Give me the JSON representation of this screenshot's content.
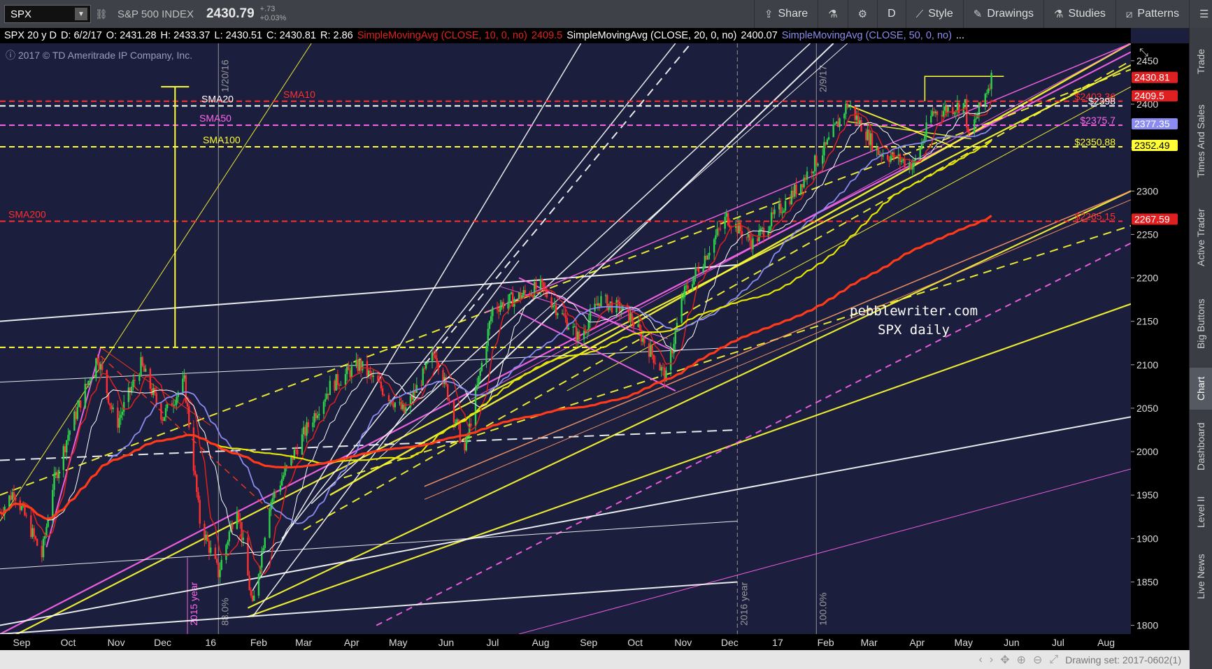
{
  "toolbar": {
    "symbol": "SPX",
    "index_name": "S&P 500 INDEX",
    "last": "2430.79",
    "change_abs": "+.73",
    "change_pct": "+0.03%",
    "share": "Share",
    "period": "D",
    "style": "Style",
    "drawings": "Drawings",
    "studies": "Studies",
    "patterns": "Patterns"
  },
  "infobar": {
    "chart_spec": "SPX 20 y D",
    "date": "D: 6/2/17",
    "open": "O: 2431.28",
    "high": "H: 2433.37",
    "low": "L: 2430.51",
    "close": "C: 2430.81",
    "range": "R: 2.86",
    "sma10_label": "SimpleMovingAvg (CLOSE, 10, 0, no)",
    "sma10_value": "2409.5",
    "sma20_label": "SimpleMovingAvg (CLOSE, 20, 0, no)",
    "sma20_value": "2400.07",
    "sma50_label": "SimpleMovingAvg (CLOSE, 50, 0, no)",
    "more": "..."
  },
  "sidebar": {
    "tabs": [
      "Trade",
      "Times And Sales",
      "Active Trader",
      "Big Buttons",
      "Chart",
      "Dashboard",
      "Level II",
      "Live News"
    ],
    "active": "Chart"
  },
  "status": {
    "drawing_set": "Drawing set: 2017-0602(1)"
  },
  "overlay_text": {
    "copyright": "2017 © TD Ameritrade IP Company, Inc.",
    "brand_line1": "pebblewriter.com",
    "brand_line2": "SPX daily"
  },
  "colors": {
    "background": "#1b1e3c",
    "sma10": "#e02020",
    "sma20": "#ffffff",
    "sma50": "#8a8cf0",
    "sma100": "#e6e600",
    "sma200": "#ff3a1a",
    "magenta": "#ff66ee",
    "yellow": "#ffff33"
  },
  "chart_data": {
    "type": "candlestick",
    "ylim": [
      1790,
      2470
    ],
    "xlim": [
      "2015-09-01",
      "2017-08-31"
    ],
    "y_ticks": [
      1800,
      1850,
      1900,
      1950,
      2000,
      2050,
      2100,
      2150,
      2200,
      2250,
      2300,
      2350,
      2400,
      2450
    ],
    "x_tick_labels": [
      {
        "label": "Sep",
        "date": "2015-09-15"
      },
      {
        "label": "Oct",
        "date": "2015-10-15"
      },
      {
        "label": "Nov",
        "date": "2015-11-15"
      },
      {
        "label": "Dec",
        "date": "2015-12-15"
      },
      {
        "label": "16",
        "date": "2016-01-15"
      },
      {
        "label": "Feb",
        "date": "2016-02-15"
      },
      {
        "label": "Mar",
        "date": "2016-03-15"
      },
      {
        "label": "Apr",
        "date": "2016-04-15"
      },
      {
        "label": "May",
        "date": "2016-05-15"
      },
      {
        "label": "Jun",
        "date": "2016-06-15"
      },
      {
        "label": "Jul",
        "date": "2016-07-15"
      },
      {
        "label": "Aug",
        "date": "2016-08-15"
      },
      {
        "label": "Sep",
        "date": "2016-09-15"
      },
      {
        "label": "Oct",
        "date": "2016-10-15"
      },
      {
        "label": "Nov",
        "date": "2016-11-15"
      },
      {
        "label": "Dec",
        "date": "2016-12-15"
      },
      {
        "label": "17",
        "date": "2017-01-15"
      },
      {
        "label": "Feb",
        "date": "2017-02-15"
      },
      {
        "label": "Mar",
        "date": "2017-03-15"
      },
      {
        "label": "Apr",
        "date": "2017-04-15"
      },
      {
        "label": "May",
        "date": "2017-05-15"
      },
      {
        "label": "Jun",
        "date": "2017-06-15"
      },
      {
        "label": "Jul",
        "date": "2017-07-15"
      },
      {
        "label": "Aug",
        "date": "2017-08-15"
      }
    ],
    "price_anchors": [
      [
        "2015-09-01",
        1930
      ],
      [
        "2015-09-10",
        1955
      ],
      [
        "2015-09-28",
        1880
      ],
      [
        "2015-10-05",
        1960
      ],
      [
        "2015-10-15",
        2020
      ],
      [
        "2015-11-03",
        2110
      ],
      [
        "2015-11-15",
        2030
      ],
      [
        "2015-12-01",
        2100
      ],
      [
        "2015-12-15",
        2040
      ],
      [
        "2015-12-29",
        2080
      ],
      [
        "2016-01-08",
        1920
      ],
      [
        "2016-01-20",
        1860
      ],
      [
        "2016-02-01",
        1940
      ],
      [
        "2016-02-11",
        1820
      ],
      [
        "2016-02-22",
        1940
      ],
      [
        "2016-03-15",
        2020
      ],
      [
        "2016-04-01",
        2075
      ],
      [
        "2016-04-20",
        2100
      ],
      [
        "2016-05-19",
        2045
      ],
      [
        "2016-06-08",
        2115
      ],
      [
        "2016-06-27",
        2000
      ],
      [
        "2016-07-15",
        2165
      ],
      [
        "2016-08-15",
        2190
      ],
      [
        "2016-09-09",
        2130
      ],
      [
        "2016-09-22",
        2175
      ],
      [
        "2016-10-10",
        2160
      ],
      [
        "2016-11-04",
        2085
      ],
      [
        "2016-11-15",
        2180
      ],
      [
        "2016-12-13",
        2270
      ],
      [
        "2016-12-30",
        2240
      ],
      [
        "2017-01-26",
        2300
      ],
      [
        "2017-02-15",
        2350
      ],
      [
        "2017-03-01",
        2400
      ],
      [
        "2017-03-21",
        2345
      ],
      [
        "2017-04-13",
        2330
      ],
      [
        "2017-04-25",
        2390
      ],
      [
        "2017-05-16",
        2400
      ],
      [
        "2017-05-18",
        2360
      ],
      [
        "2017-06-02",
        2431
      ]
    ],
    "indicators": [
      {
        "name": "SMA10",
        "value": 2409.5,
        "color": "#e02020"
      },
      {
        "name": "SMA20",
        "value": 2400.07,
        "color": "#ffffff"
      },
      {
        "name": "SMA50",
        "value": 2377.35,
        "color": "#8a8cf0"
      },
      {
        "name": "SMA100",
        "value": 2352.49,
        "color": "#e6e600"
      },
      {
        "name": "SMA200",
        "value": 2267.59,
        "color": "#ff3a1a"
      }
    ],
    "levels": [
      {
        "label": "$2403.36",
        "value": 2403.36,
        "color": "#ff3030"
      },
      {
        "label": "$2398",
        "value": 2398,
        "color": "#ffffff"
      },
      {
        "label": "$2375.7",
        "value": 2375.7,
        "color": "#ff66ee"
      },
      {
        "label": "$2350.88",
        "value": 2350.88,
        "color": "#ffff33"
      },
      {
        "label": "$2265.15",
        "value": 2265.15,
        "color": "#ff3030"
      },
      {
        "label": "",
        "value": 2120,
        "color": "#ffff33"
      }
    ],
    "level_tags": [
      {
        "text": "SMA20",
        "color": "#ffffff",
        "value": 2398
      },
      {
        "text": "SMA10",
        "color": "#ff3030",
        "value": 2403.36
      },
      {
        "text": "SMA50",
        "color": "#ff66ee",
        "value": 2375.7
      },
      {
        "text": "SMA100",
        "color": "#ffff33",
        "value": 2350.88
      },
      {
        "text": "SMA200",
        "color": "#ff3030",
        "value": 2265.15
      }
    ],
    "price_badges": [
      {
        "text": "2430.81",
        "value": 2430.81,
        "bg": "#e02020",
        "fg": "#ffffff"
      },
      {
        "text": "2409.5",
        "value": 2409.5,
        "bg": "#e02020",
        "fg": "#ffffff"
      },
      {
        "text": "2377.35",
        "value": 2377.35,
        "bg": "#8a8cf0",
        "fg": "#ffffff"
      },
      {
        "text": "2352.49",
        "value": 2352.49,
        "bg": "#ffff33",
        "fg": "#000000"
      },
      {
        "text": "2267.59",
        "value": 2267.59,
        "bg": "#e02020",
        "fg": "#ffffff"
      }
    ],
    "vertical_annotations": [
      {
        "date": "2016-01-20",
        "text": "88.0%",
        "sub": "1/20/16",
        "color": "#9a9a9a"
      },
      {
        "date": "2016-12-20",
        "text": "2016 year",
        "color": "#9a9a9a"
      },
      {
        "date": "2017-02-09",
        "text": "100.0%",
        "sub": "2/9/17",
        "color": "#9a9a9a"
      },
      {
        "date": "2015-12-31",
        "text": "2015 year",
        "color": "#ff66ee"
      }
    ]
  }
}
